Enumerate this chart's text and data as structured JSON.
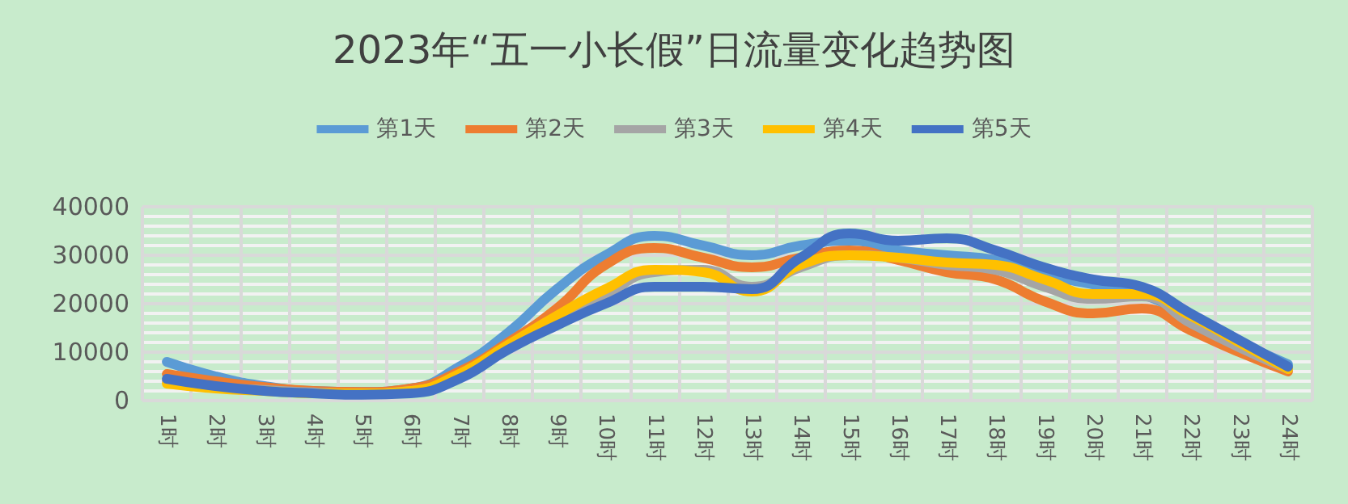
{
  "chart_data": {
    "type": "line",
    "title": "2023年“五一小长假”日流量变化趋势图",
    "categories": [
      "1时",
      "2时",
      "3时",
      "4时",
      "5时",
      "6时",
      "7时",
      "8时",
      "9时",
      "10时",
      "11时",
      "12时",
      "13时",
      "14时",
      "15时",
      "16时",
      "17时",
      "18时",
      "19时",
      "20时",
      "21时",
      "22时",
      "23时",
      "24时"
    ],
    "series": [
      {
        "name": "第1天",
        "color": "#5b9bd5",
        "values": [
          8000,
          5000,
          3000,
          2000,
          1800,
          2500,
          7000,
          14000,
          23000,
          30000,
          34000,
          32000,
          30000,
          32000,
          33000,
          31000,
          30000,
          29000,
          26000,
          24000,
          22000,
          17000,
          12000,
          7500
        ]
      },
      {
        "name": "第2天",
        "color": "#ed7d31",
        "values": [
          5500,
          4000,
          2800,
          2000,
          1800,
          2500,
          6000,
          12000,
          19000,
          28000,
          31500,
          29500,
          27500,
          29500,
          31000,
          29000,
          26500,
          25000,
          20500,
          18000,
          19000,
          14500,
          10000,
          6000
        ]
      },
      {
        "name": "第3天",
        "color": "#a5a5a5",
        "values": [
          4000,
          2800,
          2200,
          1700,
          1500,
          2000,
          5000,
          11000,
          17000,
          22000,
          26500,
          27000,
          23500,
          27500,
          30000,
          29500,
          28000,
          27000,
          23500,
          21000,
          21500,
          16000,
          11000,
          6500
        ]
      },
      {
        "name": "第4天",
        "color": "#ffc000",
        "values": [
          3500,
          2500,
          2000,
          1500,
          1500,
          2000,
          5500,
          11500,
          17500,
          23000,
          27000,
          26500,
          22500,
          28000,
          30000,
          29500,
          28500,
          28000,
          25000,
          22000,
          22000,
          17500,
          12000,
          6500
        ]
      },
      {
        "name": "第5天",
        "color": "#4472c4",
        "values": [
          4500,
          3000,
          2000,
          1500,
          1200,
          1500,
          4500,
          10500,
          15500,
          20000,
          23500,
          23500,
          23000,
          29500,
          34500,
          33000,
          33500,
          31000,
          27500,
          25000,
          23500,
          18000,
          12500,
          7000
        ]
      }
    ],
    "ylim": [
      0,
      40000
    ],
    "yticks": [
      0,
      10000,
      20000,
      30000,
      40000
    ],
    "grid": true,
    "legend": "top",
    "marker": "none",
    "line_style": "solid"
  }
}
